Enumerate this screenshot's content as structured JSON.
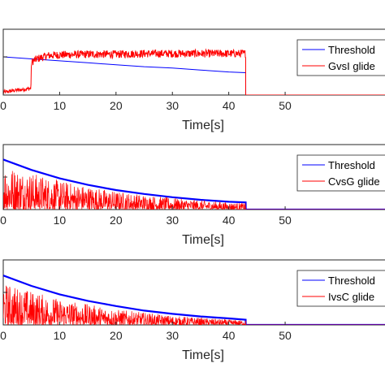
{
  "chart_data": [
    {
      "type": "line",
      "xlabel": "Time[s]",
      "xlim": [
        0,
        68
      ],
      "ylim": [
        0,
        1
      ],
      "xticks": [
        0,
        10,
        20,
        30,
        40,
        50
      ],
      "legend_position": "top-right",
      "series": [
        {
          "name": "Threshold",
          "color": "#0000ff",
          "x": [
            0,
            5,
            10,
            15,
            20,
            25,
            30,
            35,
            40,
            43,
            43.01,
            68
          ],
          "y": [
            0.58,
            0.55,
            0.52,
            0.49,
            0.46,
            0.43,
            0.41,
            0.38,
            0.35,
            0.34,
            0.0,
            0.0
          ]
        },
        {
          "name": "GvsI glide",
          "color": "#ff0000",
          "x": [
            0,
            2,
            4.9,
            5.0,
            6,
            8,
            10,
            15,
            20,
            25,
            30,
            35,
            40,
            43,
            43.01,
            68
          ],
          "y": [
            0.04,
            0.07,
            0.1,
            0.5,
            0.55,
            0.6,
            0.61,
            0.62,
            0.62,
            0.63,
            0.63,
            0.63,
            0.63,
            0.63,
            0.0,
            0.0
          ],
          "noise": 0.06
        }
      ]
    },
    {
      "type": "line",
      "xlabel": "Time[s]",
      "xlim": [
        0,
        68
      ],
      "ylim": [
        0,
        1
      ],
      "xticks": [
        0,
        10,
        20,
        30,
        40,
        50
      ],
      "legend_position": "top-right",
      "series": [
        {
          "name": "Threshold",
          "color": "#0000ff",
          "x": [
            0,
            5,
            10,
            15,
            20,
            25,
            30,
            35,
            40,
            43,
            43.01,
            68
          ],
          "y": [
            0.77,
            0.61,
            0.48,
            0.38,
            0.3,
            0.24,
            0.19,
            0.15,
            0.12,
            0.11,
            0.0,
            0.0
          ]
        },
        {
          "name": "CvsG glide",
          "color": "#ff0000",
          "x": [
            0,
            10,
            20,
            30,
            40,
            43,
            43.01,
            68
          ],
          "y": [
            0.7,
            0.45,
            0.28,
            0.18,
            0.11,
            0.1,
            0.0,
            0.0
          ],
          "style": "spikes"
        }
      ]
    },
    {
      "type": "line",
      "xlabel": "Time[s]",
      "xlim": [
        0,
        68
      ],
      "ylim": [
        0,
        1
      ],
      "xticks": [
        0,
        10,
        20,
        30,
        40,
        50
      ],
      "legend_position": "top-right",
      "series": [
        {
          "name": "Threshold",
          "color": "#0000ff",
          "x": [
            0,
            5,
            10,
            15,
            20,
            25,
            30,
            35,
            40,
            43,
            43.01,
            68
          ],
          "y": [
            0.76,
            0.6,
            0.47,
            0.37,
            0.29,
            0.22,
            0.17,
            0.13,
            0.1,
            0.08,
            0.0,
            0.0
          ]
        },
        {
          "name": "IvsC glide",
          "color": "#ff0000",
          "x": [
            0,
            10,
            20,
            30,
            40,
            43,
            43.01,
            68
          ],
          "y": [
            0.65,
            0.4,
            0.24,
            0.14,
            0.08,
            0.07,
            0.0,
            0.0
          ],
          "style": "spikes"
        }
      ]
    }
  ]
}
